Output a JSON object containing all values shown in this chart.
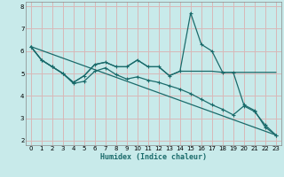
{
  "xlabel": "Humidex (Indice chaleur)",
  "bg_color": "#c8eaea",
  "grid_color": "#d8b8b8",
  "line_color": "#1a6b6b",
  "xlim": [
    -0.5,
    23.5
  ],
  "ylim": [
    1.8,
    8.2
  ],
  "xticks": [
    0,
    1,
    2,
    3,
    4,
    5,
    6,
    7,
    8,
    9,
    10,
    11,
    12,
    13,
    14,
    15,
    16,
    17,
    18,
    19,
    20,
    21,
    22,
    23
  ],
  "yticks": [
    2,
    3,
    4,
    5,
    6,
    7,
    8
  ],
  "series1_x": [
    0,
    1,
    2,
    3,
    4,
    5,
    6,
    7,
    8,
    9,
    10,
    11,
    12,
    13,
    14,
    15,
    16,
    17,
    18,
    19,
    20,
    21,
    22,
    23
  ],
  "series1_y": [
    6.2,
    5.6,
    5.3,
    5.0,
    4.6,
    4.9,
    5.4,
    5.5,
    5.3,
    5.3,
    5.6,
    5.3,
    5.3,
    4.9,
    5.1,
    7.7,
    6.3,
    6.0,
    5.05,
    5.05,
    3.6,
    3.35,
    2.6,
    2.25
  ],
  "series2_x": [
    0,
    1,
    2,
    3,
    4,
    5,
    6,
    7,
    8,
    9,
    10,
    11,
    12,
    13,
    14,
    15,
    16,
    17,
    18,
    19,
    20,
    21,
    22,
    23
  ],
  "series2_y": [
    6.2,
    5.6,
    5.3,
    5.0,
    4.6,
    4.9,
    5.4,
    5.5,
    5.3,
    5.3,
    5.6,
    5.3,
    5.3,
    4.9,
    5.1,
    5.1,
    5.1,
    5.1,
    5.05,
    5.05,
    5.05,
    5.05,
    5.05,
    5.05
  ],
  "series3_x": [
    0,
    23
  ],
  "series3_y": [
    6.2,
    2.25
  ],
  "series4_x": [
    0,
    1,
    2,
    3,
    4,
    5,
    6,
    7,
    8,
    9,
    10,
    11,
    12,
    13,
    14,
    15,
    16,
    17,
    18,
    19,
    20,
    21,
    22,
    23
  ],
  "series4_y": [
    6.2,
    5.6,
    5.3,
    5.0,
    4.55,
    4.65,
    5.1,
    5.25,
    4.95,
    4.75,
    4.85,
    4.7,
    4.6,
    4.45,
    4.3,
    4.1,
    3.85,
    3.6,
    3.4,
    3.15,
    3.55,
    3.3,
    2.7,
    2.25
  ]
}
